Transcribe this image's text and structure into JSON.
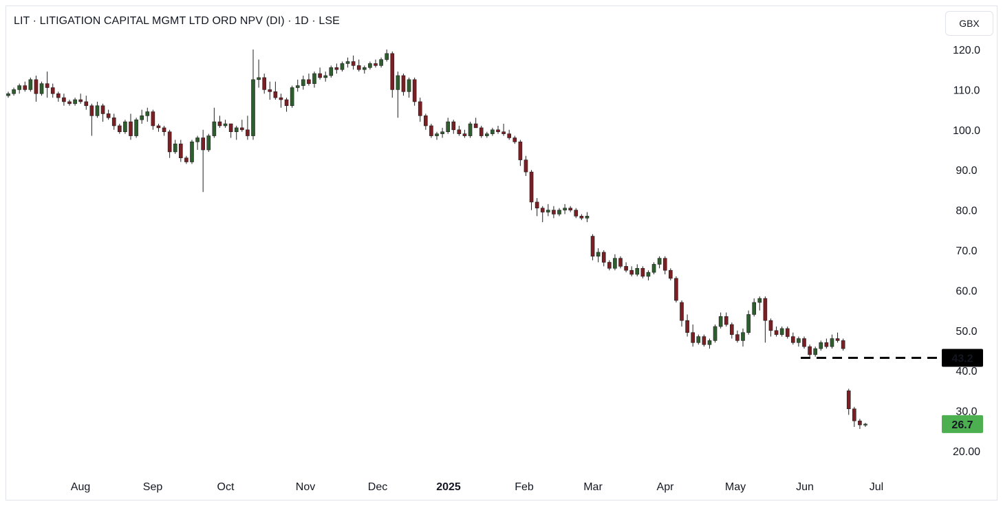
{
  "header": {
    "title": "LIT · LITIGATION CAPITAL MGMT LTD ORD NPV (DI) · 1D · LSE",
    "currency": "GBX"
  },
  "chart_data": {
    "type": "candlestick",
    "y_ticks": [
      "120.0",
      "110.0",
      "100.0",
      "90.0",
      "80.0",
      "70.0",
      "60.0",
      "50.0",
      "40.0",
      "30.0",
      "20.00"
    ],
    "x_ticks": [
      "Aug",
      "Sep",
      "Oct",
      "Nov",
      "Dec",
      "2025",
      "Feb",
      "Mar",
      "Apr",
      "May",
      "Jun",
      "Jul"
    ],
    "ylim": [
      16,
      124
    ],
    "reference_line": {
      "label": "43.2",
      "value": 43.2,
      "style": "dashed",
      "color": "#000000"
    },
    "last_price": {
      "label": "26.7",
      "value": 26.7,
      "color": "#4caf50"
    },
    "colors": {
      "up": "#2e5d2e",
      "down": "#7a1f24",
      "wick": "#1e1e1e"
    },
    "candles": [
      [
        108.5,
        109.5,
        108.0,
        109.0
      ],
      [
        109.0,
        110.5,
        108.5,
        110.0
      ],
      [
        110.0,
        111.5,
        109.0,
        111.0
      ],
      [
        111.0,
        112.0,
        109.5,
        110.0
      ],
      [
        110.0,
        113.0,
        109.5,
        112.5
      ],
      [
        112.5,
        113.5,
        107.0,
        109.0
      ],
      [
        109.0,
        112.0,
        108.5,
        111.5
      ],
      [
        111.5,
        114.5,
        108.0,
        110.5
      ],
      [
        110.5,
        111.5,
        108.0,
        109.0
      ],
      [
        109.0,
        109.5,
        107.0,
        108.0
      ],
      [
        108.0,
        109.0,
        106.0,
        107.0
      ],
      [
        107.0,
        107.5,
        106.0,
        106.5
      ],
      [
        106.5,
        108.0,
        106.0,
        107.5
      ],
      [
        107.5,
        109.0,
        106.5,
        107.0
      ],
      [
        107.0,
        108.5,
        105.0,
        106.0
      ],
      [
        106.0,
        106.5,
        98.5,
        103.5
      ],
      [
        103.5,
        107.0,
        103.0,
        106.0
      ],
      [
        106.0,
        106.5,
        102.0,
        104.0
      ],
      [
        104.0,
        105.0,
        102.5,
        103.0
      ],
      [
        103.0,
        104.0,
        100.0,
        101.0
      ],
      [
        101.0,
        101.5,
        99.0,
        99.5
      ],
      [
        99.5,
        102.5,
        99.0,
        102.0
      ],
      [
        102.0,
        104.0,
        97.5,
        98.5
      ],
      [
        98.5,
        103.0,
        98.0,
        102.5
      ],
      [
        102.5,
        105.0,
        101.5,
        103.5
      ],
      [
        103.5,
        105.5,
        102.0,
        104.5
      ],
      [
        104.5,
        105.0,
        100.0,
        101.0
      ],
      [
        101.0,
        101.5,
        99.5,
        100.5
      ],
      [
        100.5,
        101.0,
        98.5,
        99.5
      ],
      [
        99.5,
        100.0,
        93.0,
        94.5
      ],
      [
        94.5,
        97.5,
        94.0,
        96.5
      ],
      [
        96.5,
        97.5,
        92.0,
        93.0
      ],
      [
        93.0,
        93.5,
        91.5,
        92.0
      ],
      [
        92.0,
        97.5,
        91.5,
        97.0
      ],
      [
        97.0,
        98.5,
        95.0,
        98.0
      ],
      [
        98.0,
        100.0,
        84.5,
        95.0
      ],
      [
        95.0,
        99.0,
        94.5,
        98.5
      ],
      [
        98.5,
        105.5,
        98.0,
        102.0
      ],
      [
        102.0,
        103.5,
        100.5,
        101.0
      ],
      [
        101.0,
        102.5,
        100.5,
        101.5
      ],
      [
        101.5,
        101.5,
        98.0,
        99.5
      ],
      [
        99.5,
        101.0,
        97.5,
        100.5
      ],
      [
        100.5,
        102.5,
        99.5,
        100.0
      ],
      [
        100.0,
        103.5,
        97.5,
        98.5
      ],
      [
        98.5,
        120.0,
        97.5,
        112.5
      ],
      [
        112.5,
        117.5,
        110.5,
        113.0
      ],
      [
        113.0,
        114.0,
        109.0,
        110.0
      ],
      [
        110.0,
        112.0,
        107.5,
        109.5
      ],
      [
        109.5,
        112.0,
        107.5,
        108.0
      ],
      [
        108.0,
        109.0,
        105.5,
        107.5
      ],
      [
        107.5,
        108.0,
        104.5,
        106.0
      ],
      [
        106.0,
        111.0,
        105.5,
        110.5
      ],
      [
        110.5,
        112.5,
        109.5,
        111.0
      ],
      [
        111.0,
        113.5,
        110.0,
        112.5
      ],
      [
        112.5,
        114.0,
        111.0,
        111.5
      ],
      [
        111.5,
        114.5,
        110.5,
        114.0
      ],
      [
        114.0,
        115.5,
        112.5,
        113.0
      ],
      [
        113.0,
        114.5,
        112.0,
        113.5
      ],
      [
        113.5,
        116.0,
        113.0,
        115.5
      ],
      [
        115.5,
        116.5,
        114.0,
        115.0
      ],
      [
        115.0,
        117.0,
        114.5,
        116.5
      ],
      [
        116.5,
        118.0,
        115.5,
        117.0
      ],
      [
        117.0,
        118.5,
        115.0,
        116.0
      ],
      [
        116.0,
        117.5,
        114.5,
        115.0
      ],
      [
        115.0,
        116.0,
        114.0,
        115.5
      ],
      [
        115.5,
        117.0,
        115.0,
        116.5
      ],
      [
        116.5,
        117.5,
        115.5,
        116.0
      ],
      [
        116.0,
        118.0,
        115.5,
        117.5
      ],
      [
        117.5,
        120.0,
        117.0,
        119.0
      ],
      [
        119.0,
        119.5,
        108.0,
        110.0
      ],
      [
        110.0,
        114.5,
        103.0,
        113.5
      ],
      [
        113.5,
        114.0,
        108.5,
        109.5
      ],
      [
        109.5,
        113.0,
        108.0,
        112.5
      ],
      [
        112.5,
        113.0,
        106.0,
        107.0
      ],
      [
        107.0,
        108.0,
        102.0,
        103.5
      ],
      [
        103.5,
        104.0,
        100.0,
        101.0
      ],
      [
        101.0,
        101.5,
        98.0,
        98.5
      ],
      [
        98.5,
        99.5,
        97.5,
        99.0
      ],
      [
        99.0,
        100.5,
        98.0,
        99.5
      ],
      [
        99.5,
        103.0,
        99.0,
        102.0
      ],
      [
        102.0,
        102.5,
        99.0,
        100.0
      ],
      [
        100.0,
        101.0,
        98.5,
        99.0
      ],
      [
        99.0,
        100.0,
        98.0,
        98.5
      ],
      [
        98.5,
        102.0,
        98.0,
        101.5
      ],
      [
        101.5,
        103.0,
        100.5,
        100.5
      ],
      [
        100.5,
        101.0,
        98.0,
        98.5
      ],
      [
        98.5,
        99.5,
        98.0,
        99.0
      ],
      [
        99.0,
        100.5,
        98.5,
        100.0
      ],
      [
        100.0,
        101.0,
        99.0,
        99.5
      ],
      [
        99.5,
        101.5,
        98.5,
        99.0
      ],
      [
        99.0,
        100.0,
        97.5,
        98.0
      ],
      [
        98.0,
        98.5,
        96.5,
        97.0
      ],
      [
        97.0,
        97.5,
        91.0,
        92.5
      ],
      [
        92.5,
        93.5,
        88.5,
        89.5
      ],
      [
        89.5,
        90.0,
        80.0,
        82.0
      ],
      [
        82.0,
        83.0,
        78.5,
        80.5
      ],
      [
        80.5,
        81.0,
        77.0,
        79.5
      ],
      [
        79.5,
        81.5,
        78.5,
        80.0
      ],
      [
        80.0,
        81.0,
        78.0,
        79.0
      ],
      [
        79.0,
        80.5,
        78.5,
        80.0
      ],
      [
        80.0,
        81.5,
        79.0,
        80.5
      ],
      [
        80.5,
        81.0,
        79.5,
        80.0
      ],
      [
        80.0,
        80.5,
        78.0,
        78.5
      ],
      [
        78.5,
        79.0,
        77.5,
        78.0
      ],
      [
        78.0,
        79.5,
        77.0,
        78.5
      ],
      [
        73.5,
        74.0,
        67.5,
        68.5
      ],
      [
        68.5,
        70.5,
        67.0,
        69.5
      ],
      [
        69.5,
        70.0,
        66.0,
        67.0
      ],
      [
        67.0,
        67.5,
        65.0,
        65.5
      ],
      [
        65.5,
        69.0,
        65.0,
        68.0
      ],
      [
        68.0,
        68.5,
        65.5,
        66.0
      ],
      [
        66.0,
        67.0,
        64.5,
        65.0
      ],
      [
        65.0,
        66.0,
        63.5,
        64.0
      ],
      [
        64.0,
        66.5,
        63.5,
        65.5
      ],
      [
        65.5,
        66.0,
        63.0,
        63.5
      ],
      [
        63.5,
        65.0,
        62.5,
        64.5
      ],
      [
        64.5,
        67.0,
        64.0,
        66.5
      ],
      [
        66.5,
        68.5,
        65.5,
        68.0
      ],
      [
        68.0,
        68.5,
        64.0,
        65.0
      ],
      [
        65.0,
        65.5,
        62.5,
        63.0
      ],
      [
        63.0,
        63.5,
        57.0,
        57.5
      ],
      [
        57.0,
        57.5,
        51.0,
        52.5
      ],
      [
        52.5,
        54.0,
        48.5,
        49.5
      ],
      [
        49.5,
        51.5,
        46.0,
        47.0
      ],
      [
        47.0,
        49.0,
        46.5,
        48.5
      ],
      [
        48.5,
        49.0,
        46.0,
        46.5
      ],
      [
        46.5,
        48.0,
        45.5,
        47.5
      ],
      [
        47.5,
        51.5,
        47.0,
        51.0
      ],
      [
        51.0,
        54.5,
        50.5,
        53.5
      ],
      [
        53.5,
        54.5,
        51.0,
        51.5
      ],
      [
        51.5,
        52.0,
        48.0,
        49.0
      ],
      [
        49.0,
        50.0,
        47.0,
        47.5
      ],
      [
        47.5,
        50.5,
        46.0,
        49.5
      ],
      [
        49.5,
        55.0,
        49.0,
        54.0
      ],
      [
        54.0,
        58.0,
        53.5,
        57.0
      ],
      [
        57.0,
        58.5,
        55.0,
        58.0
      ],
      [
        58.0,
        58.5,
        47.0,
        52.5
      ],
      [
        52.5,
        53.0,
        48.5,
        50.0
      ],
      [
        50.0,
        51.0,
        48.5,
        49.0
      ],
      [
        49.0,
        51.0,
        48.5,
        50.5
      ],
      [
        50.5,
        51.0,
        48.0,
        48.5
      ],
      [
        48.5,
        49.5,
        46.5,
        47.0
      ],
      [
        47.0,
        48.5,
        46.0,
        48.0
      ],
      [
        48.0,
        48.5,
        45.5,
        46.0
      ],
      [
        46.0,
        46.5,
        43.5,
        44.0
      ],
      [
        44.0,
        46.0,
        43.5,
        45.5
      ],
      [
        45.5,
        47.5,
        45.0,
        47.0
      ],
      [
        47.0,
        48.0,
        45.5,
        46.0
      ],
      [
        46.0,
        49.0,
        45.5,
        48.0
      ],
      [
        48.0,
        49.5,
        47.0,
        47.5
      ],
      [
        47.5,
        48.0,
        45.0,
        45.5
      ],
      [
        35.0,
        35.5,
        29.0,
        30.5
      ],
      [
        30.5,
        31.0,
        26.0,
        27.5
      ],
      [
        27.5,
        28.0,
        25.5,
        26.5
      ],
      [
        26.5,
        27.0,
        26.0,
        26.7
      ]
    ]
  }
}
